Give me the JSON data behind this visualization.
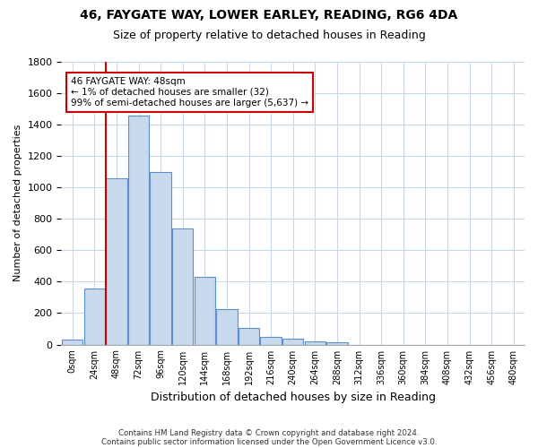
{
  "title_line1": "46, FAYGATE WAY, LOWER EARLEY, READING, RG6 4DA",
  "title_line2": "Size of property relative to detached houses in Reading",
  "xlabel": "Distribution of detached houses by size in Reading",
  "ylabel": "Number of detached properties",
  "bin_labels": [
    "0sqm",
    "24sqm",
    "48sqm",
    "72sqm",
    "96sqm",
    "120sqm",
    "144sqm",
    "168sqm",
    "192sqm",
    "216sqm",
    "240sqm",
    "264sqm",
    "288sqm",
    "312sqm",
    "336sqm",
    "360sqm",
    "384sqm",
    "408sqm",
    "432sqm",
    "456sqm",
    "480sqm"
  ],
  "bar_values": [
    30,
    355,
    1060,
    1460,
    1100,
    740,
    430,
    225,
    105,
    50,
    38,
    20,
    15,
    0,
    0,
    0,
    0,
    0,
    0,
    0,
    0
  ],
  "bar_color": "#c9d9ed",
  "bar_edge_color": "#5b8fc9",
  "vline_x_idx": 2,
  "vline_color": "#cc0000",
  "annotation_text": "46 FAYGATE WAY: 48sqm\n← 1% of detached houses are smaller (32)\n99% of semi-detached houses are larger (5,637) →",
  "annotation_box_color": "#ffffff",
  "annotation_box_edge_color": "#cc0000",
  "ylim": [
    0,
    1800
  ],
  "ytick_interval": 200,
  "footnote_line1": "Contains HM Land Registry data © Crown copyright and database right 2024.",
  "footnote_line2": "Contains public sector information licensed under the Open Government Licence v3.0.",
  "bg_color": "#ffffff",
  "grid_color": "#c8d8e8"
}
